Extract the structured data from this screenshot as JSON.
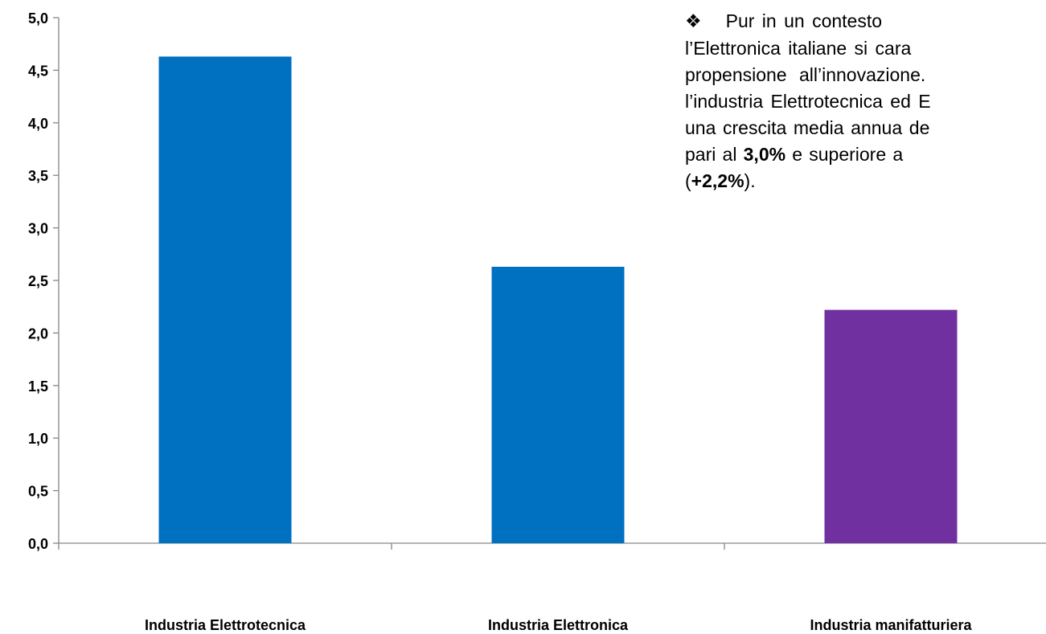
{
  "chart_data": {
    "type": "bar",
    "title": "",
    "xlabel": "",
    "ylabel": "",
    "ylim": [
      0,
      5
    ],
    "ytick_step": 0.5,
    "yticks": [
      "0,0",
      "0,5",
      "1,0",
      "1,5",
      "2,0",
      "2,5",
      "3,0",
      "3,5",
      "4,0",
      "4,5",
      "5,0"
    ],
    "grid": false,
    "legend": "none",
    "categories": [
      "Industria Elettrotecnica",
      "Industria Elettronica",
      "Industria manifatturiera"
    ],
    "values": [
      4.63,
      2.63,
      2.22
    ],
    "colors": [
      "#0070c0",
      "#0070c0",
      "#7030a0"
    ],
    "annotation": {
      "bullet": "❖",
      "lines": [
        {
          "segments": [
            {
              "text": "Pur in un contesto",
              "bold": false
            }
          ]
        },
        {
          "segments": [
            {
              "text": "l’Elettronica italiane si cara",
              "bold": false
            }
          ]
        },
        {
          "segments": [
            {
              "text": "propensione all’innovazione.",
              "bold": false
            }
          ]
        },
        {
          "segments": [
            {
              "text": "l’industria Elettrotecnica ed E",
              "bold": false
            }
          ]
        },
        {
          "segments": [
            {
              "text": "una crescita media annua de",
              "bold": false
            }
          ]
        },
        {
          "segments": [
            {
              "text": "pari al ",
              "bold": false
            },
            {
              "text": "3,0%",
              "bold": true
            },
            {
              "text": " e superiore a",
              "bold": false
            }
          ]
        },
        {
          "segments": [
            {
              "text": "(",
              "bold": false
            },
            {
              "text": "+2,2%",
              "bold": true
            },
            {
              "text": ").",
              "bold": false
            }
          ]
        }
      ]
    }
  }
}
